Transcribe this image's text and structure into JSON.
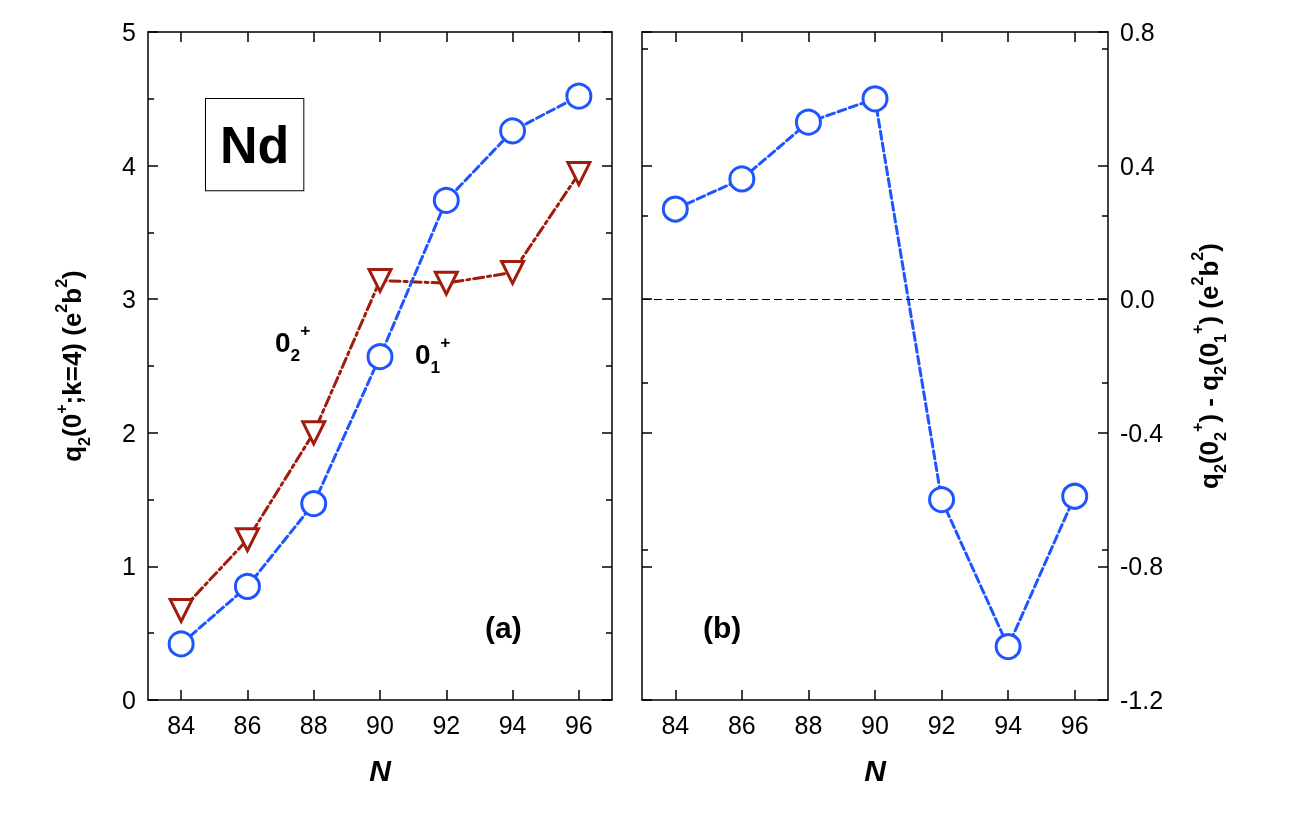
{
  "chart_data": [
    {
      "type": "line",
      "xlabel": "N",
      "ylabel": "q$_{2}$(0$^{+}$;k=4) (e$^{2}$b$^{2}$)",
      "xlim": [
        83,
        97
      ],
      "xticks": [
        84,
        86,
        88,
        90,
        92,
        94,
        96
      ],
      "ylim": [
        0,
        5
      ],
      "yticks": [
        0,
        1,
        2,
        3,
        4,
        5
      ],
      "legend": false,
      "x": [
        84,
        86,
        88,
        90,
        92,
        94,
        96
      ],
      "series": [
        {
          "name": "0$_{2}$$^{+}$",
          "color": "#a01c0c",
          "marker": "triangle",
          "line_style": "dashdot",
          "values": [
            0.67,
            1.2,
            2.0,
            3.14,
            3.12,
            3.2,
            3.94
          ]
        },
        {
          "name": "0$_{1}$$^{+}$",
          "color": "#1f55ff",
          "marker": "circle",
          "line_style": "dashed",
          "values": [
            0.42,
            0.85,
            1.47,
            2.57,
            3.74,
            4.26,
            4.52
          ]
        }
      ],
      "annotations": [
        "Nd",
        "(a)"
      ]
    },
    {
      "type": "line",
      "xlabel": "N",
      "y2label": "q$_{2}$(0$_{2}$$^{+}$) - q$_{2}$(0$_{1}$$^{+}$) (e$^{2}$b$^{2}$)",
      "xlim": [
        83,
        97
      ],
      "xticks": [
        84,
        86,
        88,
        90,
        92,
        94,
        96
      ],
      "y2lim": [
        -1.2,
        0.8
      ],
      "y2ticks": [
        {
          "value": -1.2,
          "label": "-1.2"
        },
        {
          "value": -0.8,
          "label": "-0.8"
        },
        {
          "value": -0.4,
          "label": "-0.4"
        },
        {
          "value": 0,
          "label": "0.0"
        },
        {
          "value": 0.4,
          "label": "0.4"
        },
        {
          "value": 0.8,
          "label": "0.8"
        }
      ],
      "legend": false,
      "x": [
        84,
        86,
        88,
        90,
        92,
        94,
        96
      ],
      "series": [
        {
          "color": "#1f55ff",
          "marker": "circle",
          "line_style": "dashed",
          "axis": "y2",
          "values": [
            0.27,
            0.36,
            0.53,
            0.6,
            -0.6,
            -1.04,
            -0.59
          ]
        }
      ],
      "ref_lines": [
        {
          "axis": "y2",
          "value": 0,
          "color": "#000000",
          "line_style": "dashed"
        }
      ],
      "annotations": [
        "(b)"
      ]
    }
  ]
}
